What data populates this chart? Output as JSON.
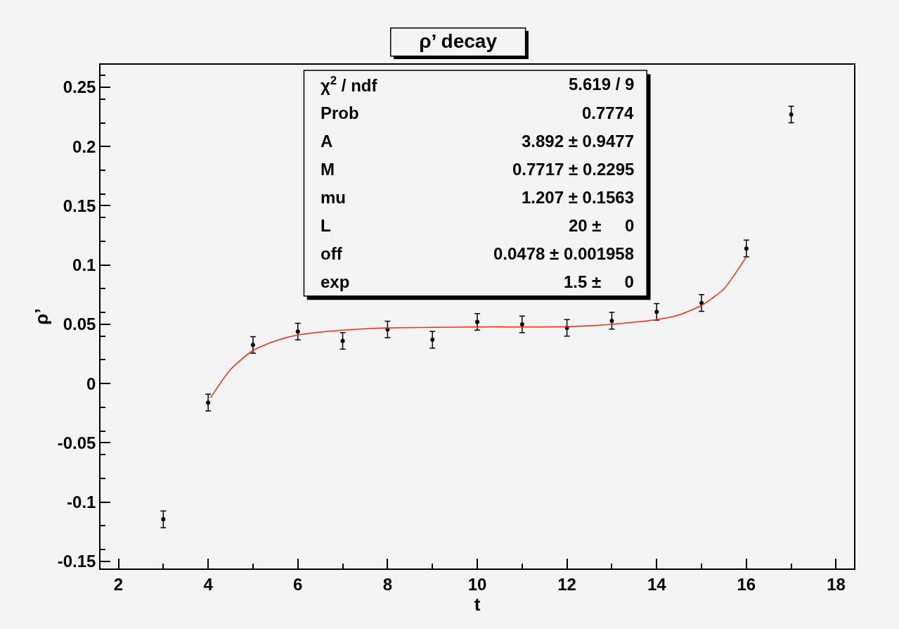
{
  "chart_data": {
    "type": "scatter",
    "title": "ρ’ decay",
    "xlabel": "t",
    "ylabel": "ρ’",
    "xlim": [
      1.6,
      18.4
    ],
    "xticks": [
      2,
      4,
      6,
      8,
      10,
      12,
      14,
      16,
      18
    ],
    "ylim": [
      -0.156,
      0.269
    ],
    "yticks": [
      -0.15,
      -0.1,
      -0.05,
      0,
      0.05,
      0.1,
      0.15,
      0.2,
      0.25
    ],
    "grid": false,
    "marker": "none",
    "series": [
      {
        "type": "scatter",
        "color": "#000000",
        "x": [
          3,
          4,
          5,
          6,
          7,
          8,
          9,
          10,
          11,
          12,
          13,
          14,
          15,
          16,
          17
        ],
        "values": [
          -0.1145,
          -0.016,
          0.0326,
          0.0439,
          0.036,
          0.0457,
          0.037,
          0.052,
          0.05,
          0.047,
          0.053,
          0.0605,
          0.068,
          0.114,
          0.227
        ],
        "errors": [
          0.007,
          0.007,
          0.007,
          0.007,
          0.007,
          0.007,
          0.007,
          0.007,
          0.007,
          0.007,
          0.007,
          0.007,
          0.007,
          0.007,
          0.007
        ]
      },
      {
        "type": "line",
        "color": "#ff2a10",
        "line_style": "solid",
        "x": [
          4.05,
          4.5,
          5,
          5.5,
          6,
          7,
          8,
          10,
          12,
          13,
          14,
          14.5,
          15,
          15.5,
          16
        ],
        "values": [
          -0.012,
          0.012,
          0.028,
          0.036,
          0.041,
          0.045,
          0.047,
          0.0478,
          0.048,
          0.05,
          0.054,
          0.058,
          0.066,
          0.08,
          0.107
        ]
      }
    ],
    "annotations": [
      "χ$^{2}$ / ndf",
      "5.619 / 9",
      "Prob",
      "0.7774",
      "A",
      "3.892 ± 0.9477",
      "M",
      "0.7717 ± 0.2295",
      "mu",
      "1.207 ± 0.1563",
      "L",
      "20 ±     0",
      "off",
      "0.0478 ± 0.001958",
      "exp",
      "1.5 ±     0"
    ]
  }
}
